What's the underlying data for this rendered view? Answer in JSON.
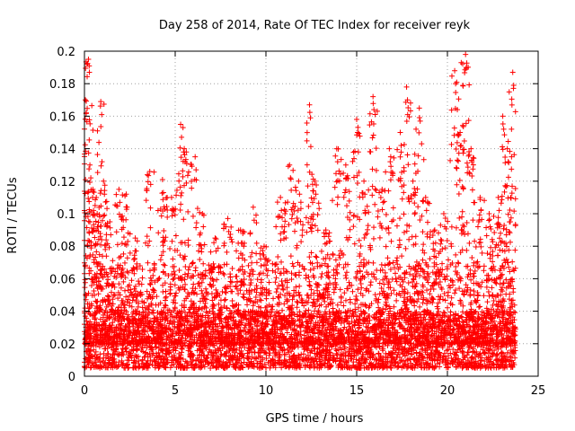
{
  "chart_data": {
    "type": "scatter",
    "title": "Day 258 of 2014, Rate Of TEC Index for receiver reyk",
    "xlabel": "GPS time / hours",
    "ylabel": "ROTI / TECUs",
    "xlim": [
      0,
      25
    ],
    "ylim": [
      0,
      0.2
    ],
    "xticks": [
      "0",
      "5",
      "10",
      "15",
      "20",
      "25"
    ],
    "yticks": [
      "0",
      "0.02",
      "0.04",
      "0.06",
      "0.08",
      "0.1",
      "0.12",
      "0.14",
      "0.16",
      "0.18",
      "0.2"
    ],
    "grid": true,
    "marker": "+",
    "color": "#ff0000",
    "series": [
      {
        "name": "ROTI",
        "x_range": [
          0.0,
          23.75
        ],
        "base_range": [
          0.005,
          0.04
        ],
        "typical_envelope": 0.07,
        "peaks": [
          {
            "x": 0.05,
            "y": 0.17
          },
          {
            "x": 0.22,
            "y": 0.195
          },
          {
            "x": 0.3,
            "y": 0.13
          },
          {
            "x": 0.45,
            "y": 0.11
          },
          {
            "x": 0.7,
            "y": 0.1
          },
          {
            "x": 0.9,
            "y": 0.169
          },
          {
            "x": 1.05,
            "y": 0.12
          },
          {
            "x": 1.4,
            "y": 0.095
          },
          {
            "x": 1.9,
            "y": 0.115
          },
          {
            "x": 2.3,
            "y": 0.112
          },
          {
            "x": 2.8,
            "y": 0.085
          },
          {
            "x": 3.6,
            "y": 0.126
          },
          {
            "x": 4.3,
            "y": 0.121
          },
          {
            "x": 4.8,
            "y": 0.11
          },
          {
            "x": 5.3,
            "y": 0.155
          },
          {
            "x": 5.5,
            "y": 0.14
          },
          {
            "x": 6.1,
            "y": 0.135
          },
          {
            "x": 6.5,
            "y": 0.1
          },
          {
            "x": 7.2,
            "y": 0.085
          },
          {
            "x": 7.9,
            "y": 0.097
          },
          {
            "x": 8.6,
            "y": 0.09
          },
          {
            "x": 9.3,
            "y": 0.104
          },
          {
            "x": 9.9,
            "y": 0.08
          },
          {
            "x": 10.8,
            "y": 0.11
          },
          {
            "x": 11.3,
            "y": 0.13
          },
          {
            "x": 11.8,
            "y": 0.12
          },
          {
            "x": 12.4,
            "y": 0.167
          },
          {
            "x": 12.7,
            "y": 0.12
          },
          {
            "x": 13.3,
            "y": 0.09
          },
          {
            "x": 13.9,
            "y": 0.14
          },
          {
            "x": 14.4,
            "y": 0.13
          },
          {
            "x": 15.0,
            "y": 0.158
          },
          {
            "x": 15.4,
            "y": 0.12
          },
          {
            "x": 15.9,
            "y": 0.172
          },
          {
            "x": 16.4,
            "y": 0.115
          },
          {
            "x": 16.8,
            "y": 0.14
          },
          {
            "x": 17.4,
            "y": 0.15
          },
          {
            "x": 17.75,
            "y": 0.178
          },
          {
            "x": 18.1,
            "y": 0.12
          },
          {
            "x": 18.45,
            "y": 0.165
          },
          {
            "x": 18.8,
            "y": 0.11
          },
          {
            "x": 19.3,
            "y": 0.09
          },
          {
            "x": 19.8,
            "y": 0.1
          },
          {
            "x": 20.4,
            "y": 0.188
          },
          {
            "x": 20.7,
            "y": 0.15
          },
          {
            "x": 21.0,
            "y": 0.198
          },
          {
            "x": 21.3,
            "y": 0.14
          },
          {
            "x": 21.8,
            "y": 0.11
          },
          {
            "x": 22.3,
            "y": 0.1
          },
          {
            "x": 22.8,
            "y": 0.11
          },
          {
            "x": 23.05,
            "y": 0.16
          },
          {
            "x": 23.3,
            "y": 0.14
          },
          {
            "x": 23.6,
            "y": 0.187
          }
        ]
      }
    ]
  }
}
